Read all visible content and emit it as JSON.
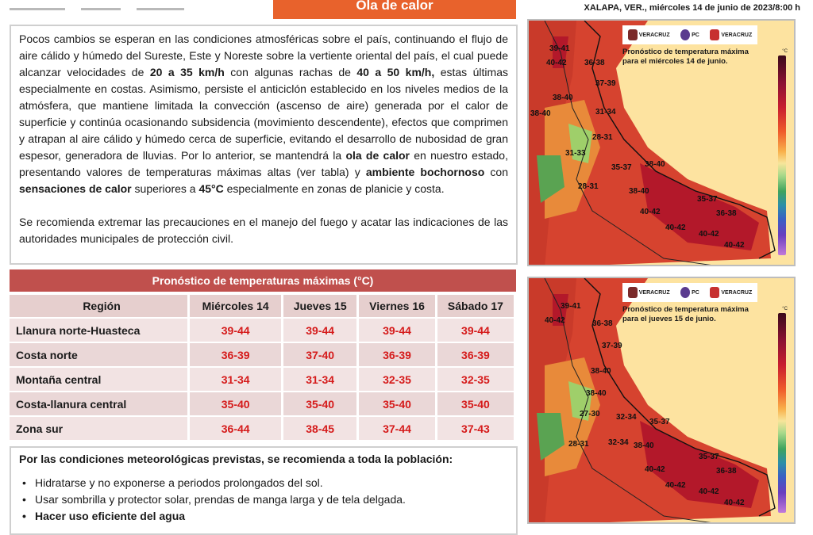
{
  "banner": {
    "title": "Ola de calor"
  },
  "dateline": "XALAPA, VER., miércoles 14 de junio de 2023/8:00 h",
  "intro": {
    "p1": [
      {
        "t": "Pocos cambios se esperan en las condiciones atmosféricas sobre el país, continuando el flujo de aire cálido y húmedo del Sureste, Este y Noreste sobre la vertiente oriental del país, el cual puede alcanzar velocidades de "
      },
      {
        "t": "20 a 35 km/h",
        "b": true
      },
      {
        "t": " con algunas rachas de "
      },
      {
        "t": "40 a 50 km/h,",
        "b": true
      },
      {
        "t": " estas últimas especialmente en costas. Asimismo, persiste el anticiclón establecido en los niveles medios de la atmósfera, que mantiene limitada la convección (ascenso de aire) generada por el calor de superficie y continúa ocasionando subsidencia (movimiento descendente), efectos que comprimen y atrapan al aire cálido y húmedo cerca de superficie, evitando el desarrollo de nubosidad de gran espesor, generadora de lluvias. Por lo anterior, se mantendrá la "
      },
      {
        "t": "ola de calor",
        "b": true
      },
      {
        "t": " en nuestro estado, presentando valores de temperaturas máximas altas (ver tabla) y "
      },
      {
        "t": "ambiente bochornoso",
        "b": true
      },
      {
        "t": " con "
      },
      {
        "t": "sensaciones de calor",
        "b": true
      },
      {
        "t": " superiores a "
      },
      {
        "t": "45°C",
        "b": true
      },
      {
        "t": " especialmente en zonas de planicie y costa."
      }
    ],
    "p2": "Se recomienda extremar las precauciones en el manejo del fuego y acatar las indicaciones de las autoridades municipales de protección civil."
  },
  "table": {
    "title": "Pronóstico de temperaturas máximas (°C)",
    "headers": [
      "Región",
      "Miércoles 14",
      "Jueves 15",
      "Viernes 16",
      "Sábado 17"
    ],
    "rows": [
      {
        "region": "Llanura norte-Huasteca",
        "values": [
          "39-44",
          "39-44",
          "39-44",
          "39-44"
        ]
      },
      {
        "region": "Costa norte",
        "values": [
          "36-39",
          "37-40",
          "36-39",
          "36-39"
        ]
      },
      {
        "region": "Montaña central",
        "values": [
          "31-34",
          "31-34",
          "32-35",
          "32-35"
        ]
      },
      {
        "region": "Costa-llanura central",
        "values": [
          "35-40",
          "35-40",
          "35-40",
          "35-40"
        ]
      },
      {
        "region": "Zona sur",
        "values": [
          "36-44",
          "38-45",
          "37-44",
          "37-43"
        ]
      }
    ]
  },
  "recommendations": {
    "lead": "Por las condiciones meteorológicas previstas, se recomienda a toda la población:",
    "items": [
      "Hidratarse y no exponerse a periodos prolongados del sol.",
      "Usar sombrilla y protector solar, prendas de manga larga y de tela delgada.",
      "Hacer uso eficiente del agua"
    ]
  },
  "logos": {
    "a": "VERACRUZ",
    "b": "PC",
    "c": "VERACRUZ"
  },
  "maps": [
    {
      "caption": "Pronóstico de temperatura máxima para el miércoles 14 de junio.",
      "labels": [
        "39-41",
        "36-38",
        "40-42",
        "37-39",
        "38-40",
        "31-34",
        "38-40",
        "28-31",
        "31-33",
        "35-37",
        "38-40",
        "28-31",
        "38-40",
        "35-37",
        "40-42",
        "36-38",
        "40-42",
        "40-42",
        "40-42"
      ]
    },
    {
      "caption": "Pronóstico de temperatura máxima para el jueves 15 de junio.",
      "labels": [
        "39-41",
        "36-38",
        "40-42",
        "37-39",
        "38-40",
        "38-40",
        "27-30",
        "32-34",
        "35-37",
        "28-31",
        "32-34",
        "38-40",
        "35-37",
        "40-42",
        "36-38",
        "40-42",
        "40-42",
        "40-42"
      ]
    }
  ]
}
